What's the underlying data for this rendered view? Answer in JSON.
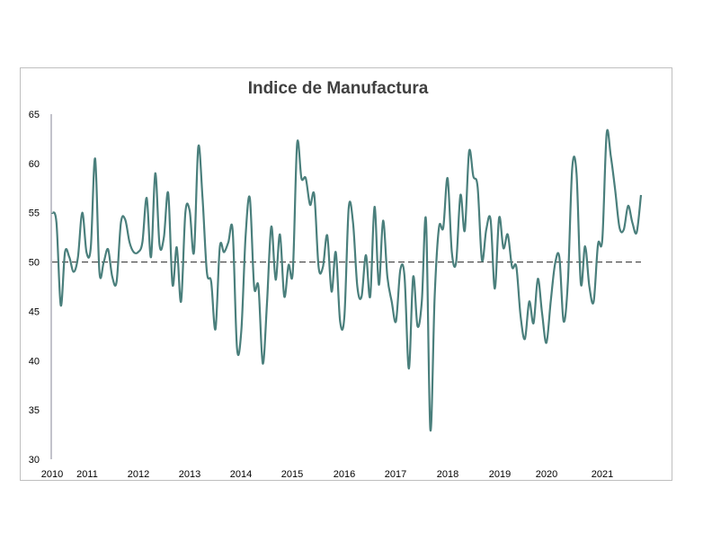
{
  "chart_data": {
    "type": "line",
    "title": "Indice de Manufactura",
    "xlabel": "",
    "ylabel": "",
    "ylim": [
      30,
      65
    ],
    "yticks": [
      30,
      35,
      40,
      45,
      50,
      55,
      60,
      65
    ],
    "xticks": [
      "2010",
      "2011",
      "2012",
      "2013",
      "2014",
      "2015",
      "2016",
      "2017",
      "2018",
      "2019",
      "2020",
      "2021"
    ],
    "reference_line": 50,
    "grid": false,
    "legend": "none",
    "colors": {
      "series": "#4a7f7c",
      "reference": "#404040"
    },
    "series": [
      {
        "values": [
          55.0,
          54.0,
          45.6,
          51.0,
          50.5,
          49.0,
          50.5,
          55.0,
          51.0,
          51.5,
          60.5,
          49.0,
          50.0,
          51.3,
          48.5,
          48.0,
          54.0,
          54.3,
          52.0,
          51.0,
          51.0,
          52.0,
          56.5,
          50.5,
          59.0,
          51.7,
          52.5,
          57.0,
          47.7,
          51.5,
          46.0,
          55.0,
          55.2,
          51.0,
          61.7,
          56.5,
          49.0,
          48.0,
          43.2,
          51.5,
          51.0,
          52.0,
          53.2,
          41.3,
          43.0,
          52.5,
          56.5,
          47.5,
          47.5,
          39.7,
          46.0,
          53.6,
          48.2,
          52.8,
          46.5,
          49.7,
          49.0,
          62.0,
          58.5,
          58.5,
          55.8,
          56.8,
          49.5,
          49.5,
          52.7,
          47.0,
          51.0,
          44.0,
          44.5,
          55.5,
          54.0,
          47.5,
          46.5,
          50.7,
          46.5,
          55.6,
          47.7,
          54.2,
          48.5,
          46.0,
          44.0,
          49.2,
          48.5,
          39.2,
          48.5,
          43.5,
          46.0,
          54.2,
          33.0,
          46.5,
          53.5,
          53.5,
          58.5,
          51.0,
          50.0,
          56.8,
          53.2,
          61.2,
          58.7,
          57.6,
          50.2,
          53.3,
          54.3,
          47.3,
          54.5,
          51.4,
          52.8,
          49.5,
          49.5,
          44.5,
          42.2,
          46.0,
          43.8,
          48.3,
          44.8,
          41.8,
          46.0,
          49.8,
          50.5,
          44.0,
          48.0,
          59.5,
          59.0,
          47.8,
          51.6,
          47.5,
          46.0,
          51.8,
          52.3,
          63.0,
          60.7,
          57.3,
          53.5,
          53.3,
          55.7,
          54.0,
          53.0,
          56.8
        ]
      }
    ]
  }
}
